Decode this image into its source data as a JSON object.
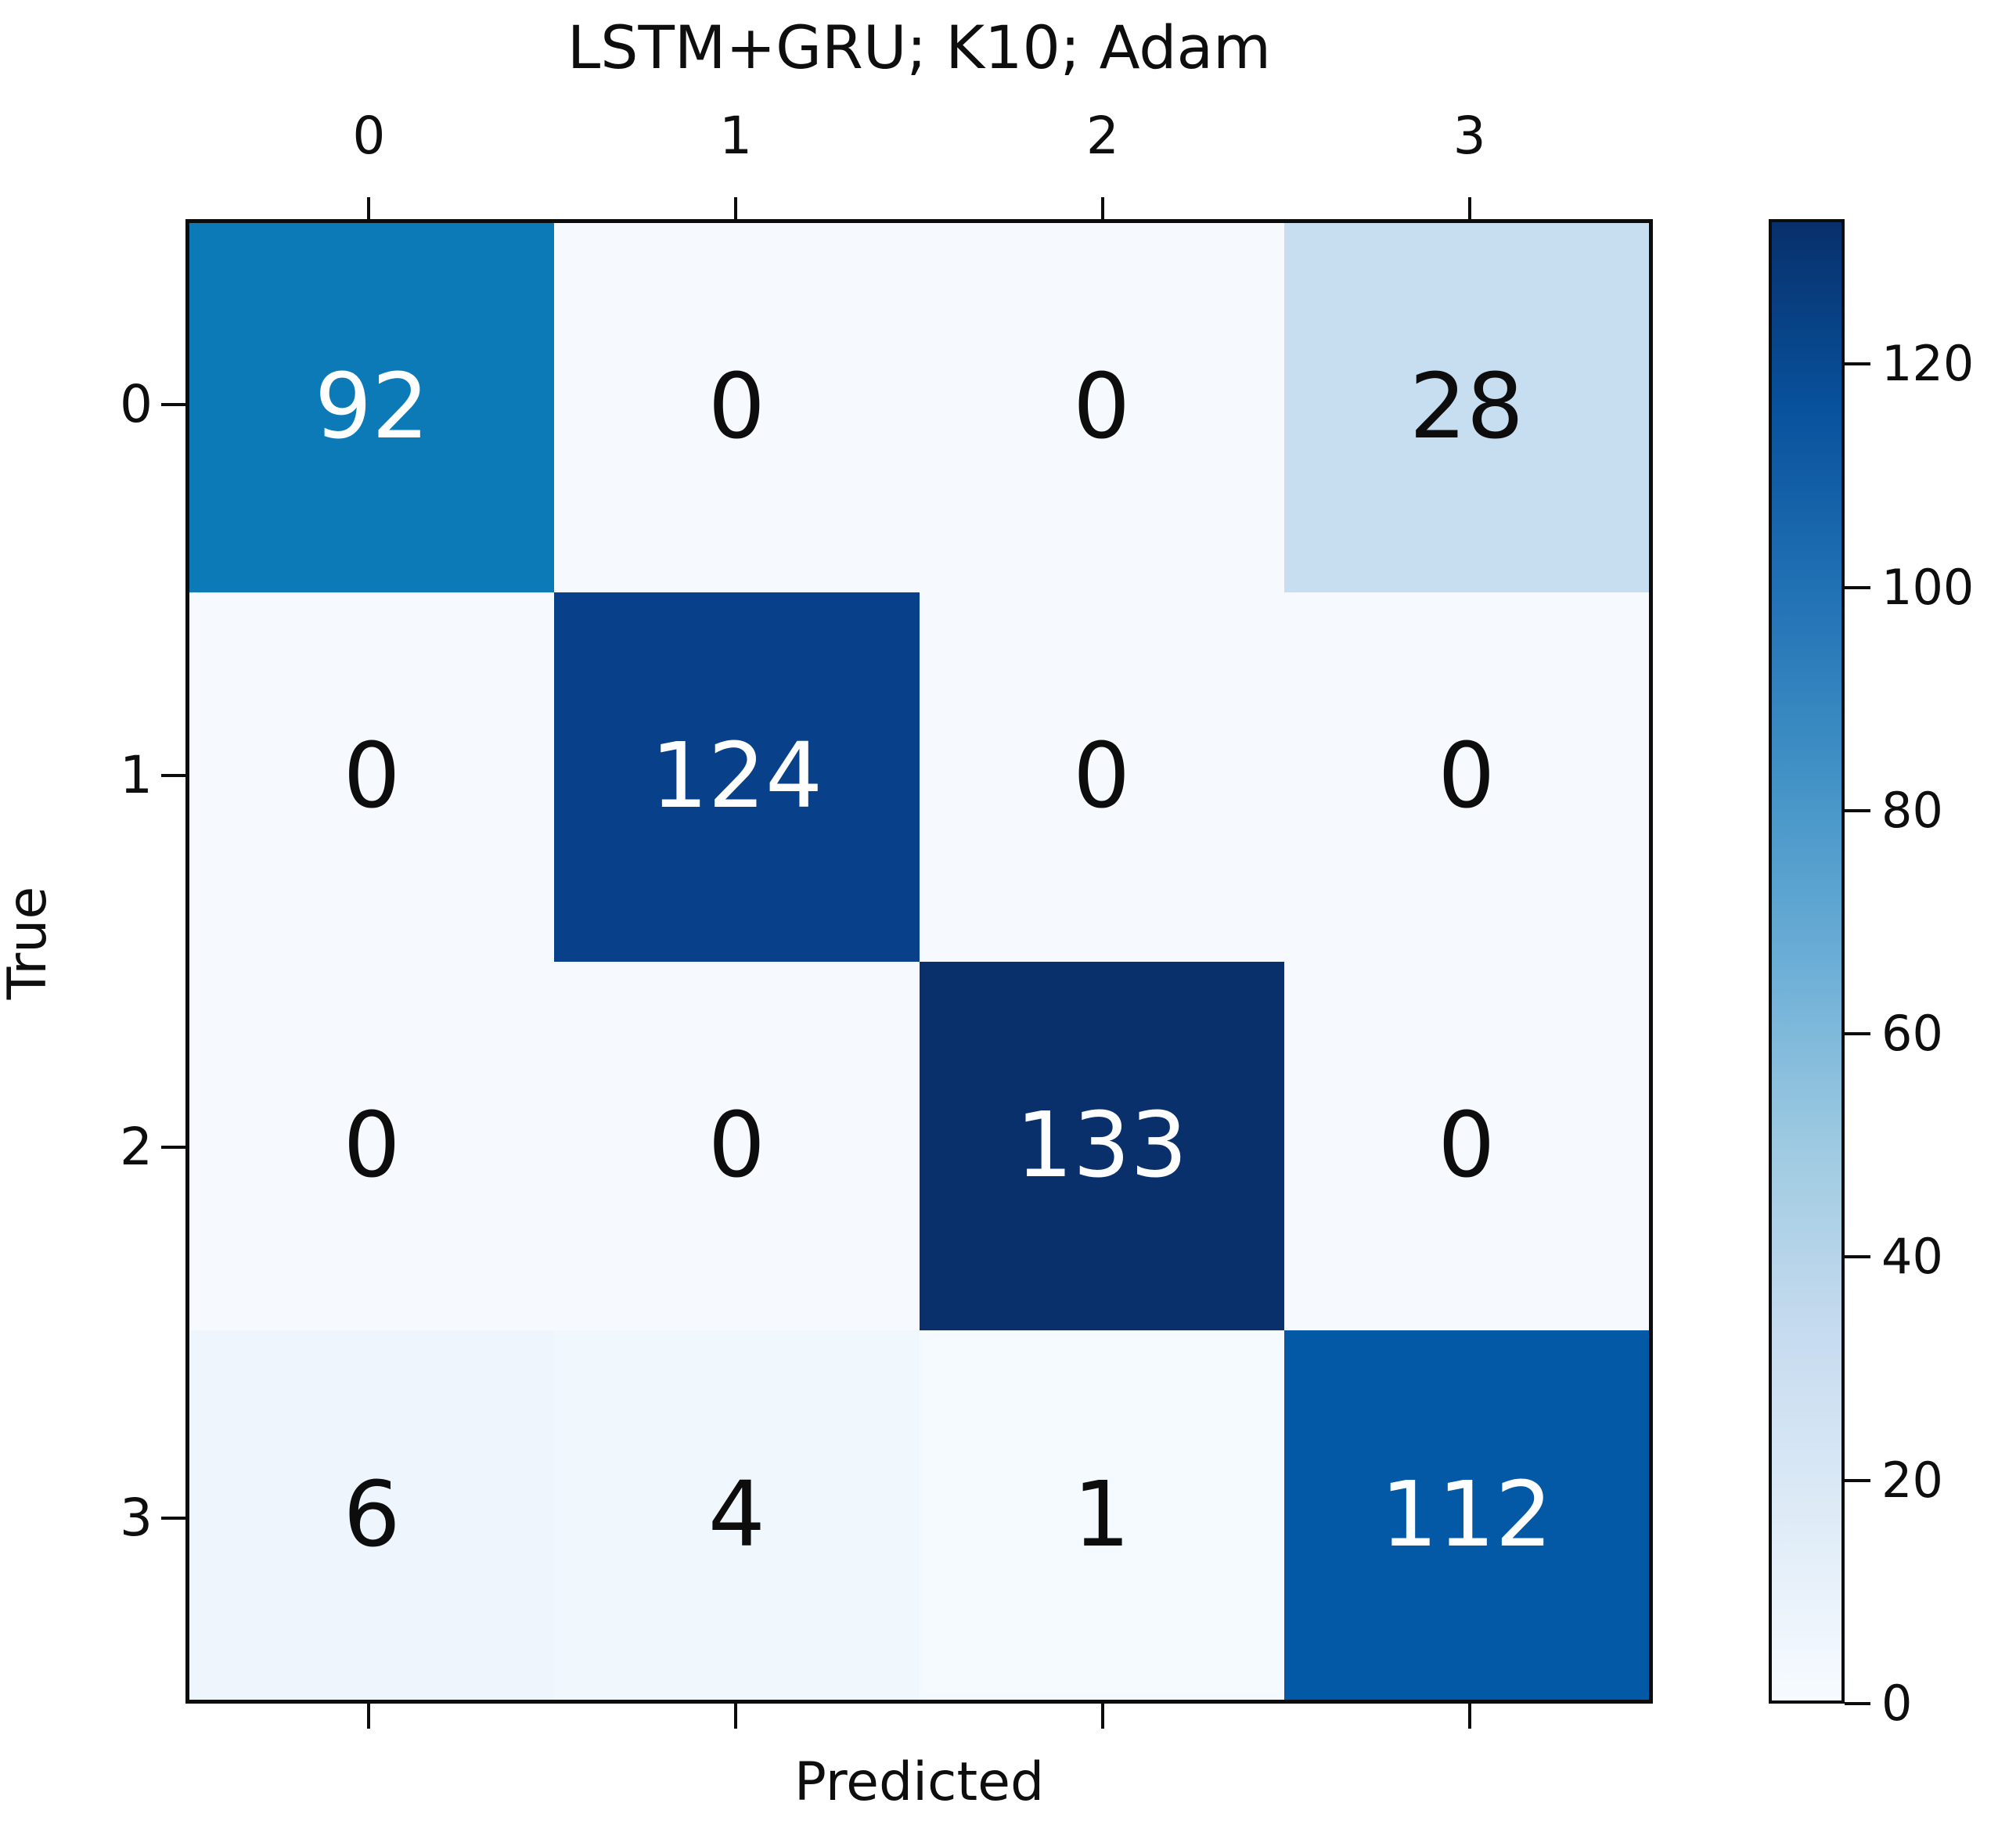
{
  "title": "LSTM+GRU; K10; Adam",
  "axes": {
    "xlabel": "Predicted",
    "ylabel": "True",
    "x_tick_labels": [
      "0",
      "1",
      "2",
      "3"
    ],
    "y_tick_labels": [
      "0",
      "1",
      "2",
      "3"
    ]
  },
  "colorbar": {
    "tick_labels": [
      "0",
      "20",
      "40",
      "60",
      "80",
      "100",
      "120"
    ],
    "tick_values": [
      0,
      20,
      40,
      60,
      80,
      100,
      120
    ],
    "vmin": 0,
    "vmax": 133,
    "gradient_stops": [
      "#f7fbff",
      "#deebf7",
      "#c6dbef",
      "#9ecae1",
      "#6baed6",
      "#4292c6",
      "#2171b5",
      "#08519c",
      "#08306b"
    ]
  },
  "chart_data": {
    "type": "heatmap",
    "title": "LSTM+GRU; K10; Adam",
    "xlabel": "Predicted",
    "ylabel": "True",
    "x_categories": [
      "0",
      "1",
      "2",
      "3"
    ],
    "y_categories": [
      "0",
      "1",
      "2",
      "3"
    ],
    "rows": [
      [
        92,
        0,
        0,
        28
      ],
      [
        0,
        124,
        0,
        0
      ],
      [
        0,
        0,
        133,
        0
      ],
      [
        6,
        4,
        1,
        112
      ]
    ],
    "colormap": "Blues",
    "vmin": 0,
    "vmax": 133,
    "colorbar_ticks": [
      0,
      20,
      40,
      60,
      80,
      100,
      120
    ],
    "legend_position": "right-colorbar",
    "grid": false
  },
  "cells": [
    [
      {
        "label": "92",
        "bg": "#0d7ab8",
        "fg": "#ffffff"
      },
      {
        "label": "0",
        "bg": "#f6faff",
        "fg": "#0d0d0d"
      },
      {
        "label": "0",
        "bg": "#f6faff",
        "fg": "#0d0d0d"
      },
      {
        "label": "28",
        "bg": "#c7def1",
        "fg": "#0d0d0d"
      }
    ],
    [
      {
        "label": "0",
        "bg": "#f6faff",
        "fg": "#0d0d0d"
      },
      {
        "label": "124",
        "bg": "#08418a",
        "fg": "#ffffff"
      },
      {
        "label": "0",
        "bg": "#f6faff",
        "fg": "#0d0d0d"
      },
      {
        "label": "0",
        "bg": "#f6faff",
        "fg": "#0d0d0d"
      }
    ],
    [
      {
        "label": "0",
        "bg": "#f6faff",
        "fg": "#0d0d0d"
      },
      {
        "label": "0",
        "bg": "#f6faff",
        "fg": "#0d0d0d"
      },
      {
        "label": "133",
        "bg": "#0a306b",
        "fg": "#ffffff"
      },
      {
        "label": "0",
        "bg": "#f6faff",
        "fg": "#0d0d0d"
      }
    ],
    [
      {
        "label": "6",
        "bg": "#eef5fc",
        "fg": "#0d0d0d"
      },
      {
        "label": "4",
        "bg": "#f1f8fd",
        "fg": "#0d0d0d"
      },
      {
        "label": "1",
        "bg": "#f5fafe",
        "fg": "#0d0d0d"
      },
      {
        "label": "112",
        "bg": "#0459a6",
        "fg": "#ffffff"
      }
    ]
  ]
}
